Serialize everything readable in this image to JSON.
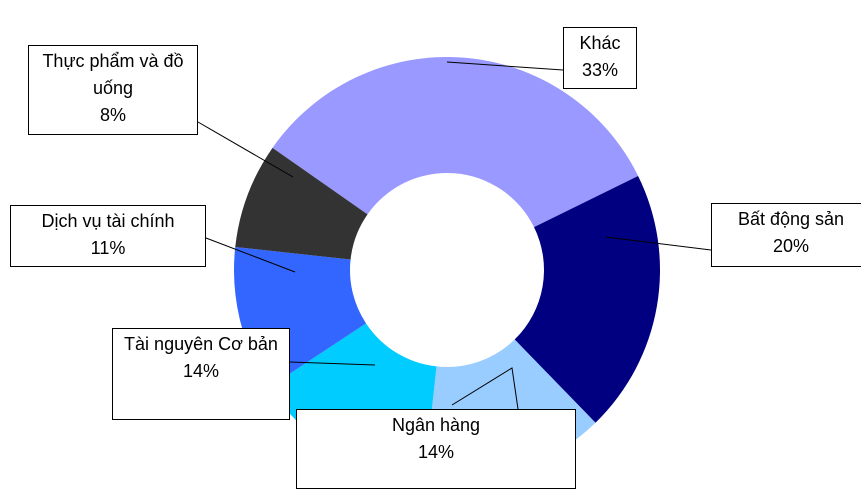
{
  "chart_data": {
    "type": "donut",
    "categories": [
      "Khác",
      "Bất động sản",
      "Ngân hàng",
      "Tài nguyên Cơ bản",
      "Dịch vụ tài chính",
      "Thực phẩm và đồ uống"
    ],
    "values": [
      33,
      20,
      14,
      14,
      11,
      8
    ],
    "value_labels": [
      "33%",
      "20%",
      "14%",
      "14%",
      "11%",
      "8%"
    ],
    "colors": [
      "#9999ff",
      "#000080",
      "#99ccff",
      "#00ccff",
      "#3366ff",
      "#333333"
    ]
  }
}
